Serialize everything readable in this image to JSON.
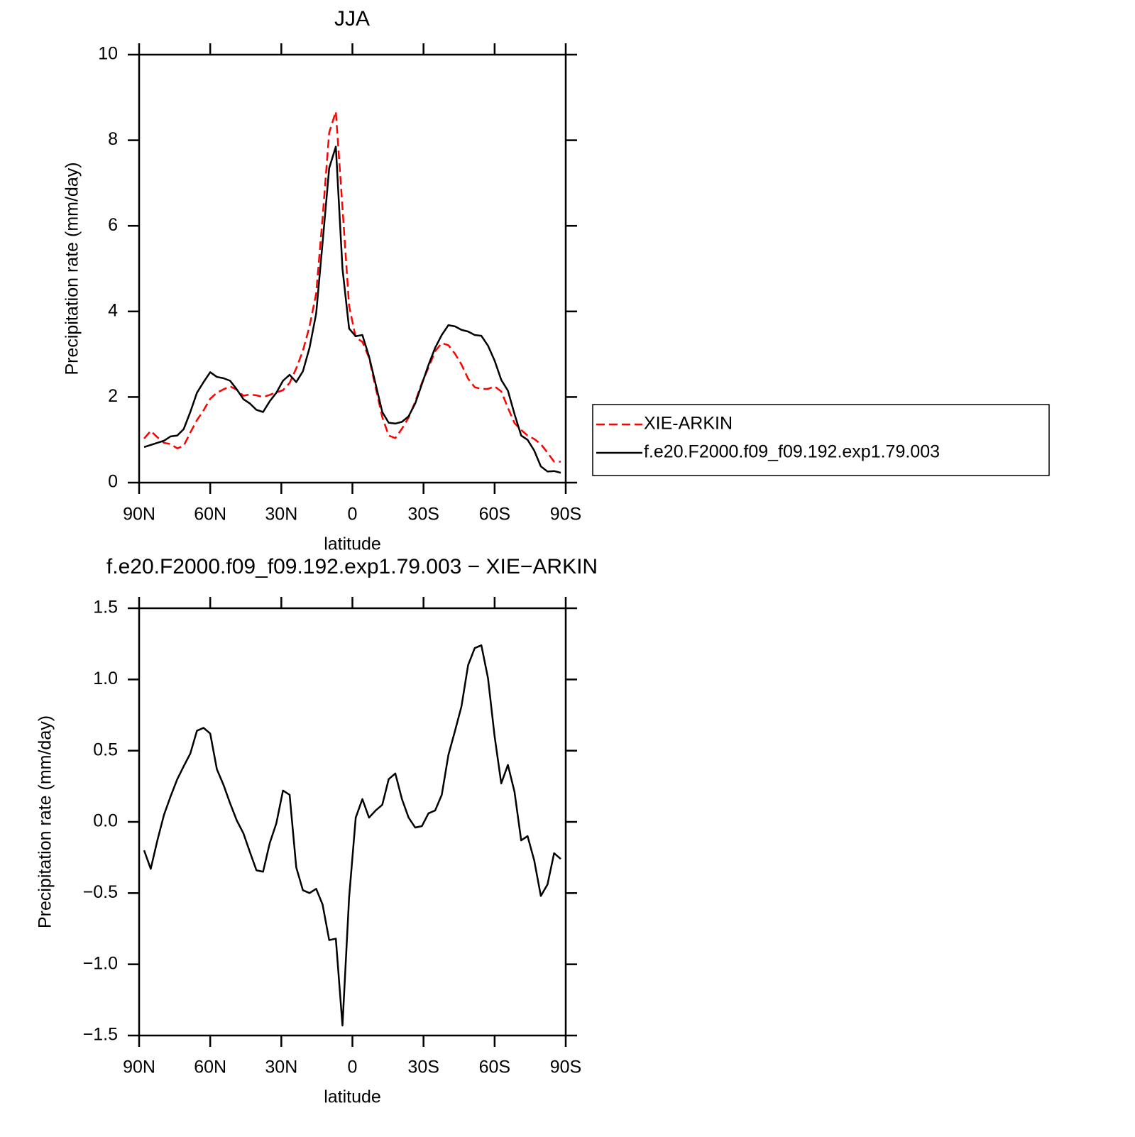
{
  "chart_data": [
    {
      "type": "line",
      "title": "JJA",
      "xlabel": "latitude",
      "ylabel": "Precipitation rate (mm/day)",
      "x": [
        87.9,
        85.1,
        82.3,
        79.5,
        76.7,
        73.9,
        71.2,
        68.4,
        65.6,
        62.8,
        60.0,
        57.2,
        54.4,
        51.6,
        48.8,
        46.0,
        43.3,
        40.5,
        37.7,
        34.9,
        32.1,
        29.3,
        26.5,
        23.7,
        20.9,
        18.1,
        15.3,
        12.6,
        9.8,
        7.0,
        4.2,
        1.4,
        -1.4,
        -4.2,
        -7.0,
        -9.8,
        -12.6,
        -15.3,
        -18.1,
        -20.9,
        -23.7,
        -26.5,
        -29.3,
        -32.1,
        -34.9,
        -37.7,
        -40.5,
        -43.3,
        -46.0,
        -48.8,
        -51.6,
        -54.4,
        -57.2,
        -60.0,
        -62.8,
        -65.6,
        -68.4,
        -71.2,
        -73.9,
        -76.7,
        -79.5,
        -82.3,
        -85.1,
        -87.9
      ],
      "series": [
        {
          "name": "XIE-ARKIN",
          "color": "#ff0000",
          "line_style": "dashed",
          "values": [
            1.03,
            1.21,
            1.06,
            0.93,
            0.9,
            0.8,
            0.86,
            1.17,
            1.46,
            1.69,
            1.96,
            2.1,
            2.18,
            2.25,
            2.17,
            2.03,
            2.06,
            2.04,
            2.0,
            2.05,
            2.11,
            2.16,
            2.33,
            2.67,
            3.08,
            3.65,
            4.42,
            6.18,
            8.18,
            8.67,
            6.43,
            4.13,
            3.39,
            3.29,
            2.92,
            2.22,
            1.53,
            1.1,
            1.04,
            1.26,
            1.52,
            1.89,
            2.33,
            2.69,
            3.07,
            3.26,
            3.21,
            3.01,
            2.76,
            2.43,
            2.23,
            2.19,
            2.19,
            2.25,
            2.13,
            1.75,
            1.39,
            1.23,
            1.1,
            1.02,
            0.9,
            0.7,
            0.49,
            0.49
          ]
        },
        {
          "name": "f.e20.F2000.f09_f09.192.exp1.79.003",
          "color": "#000000",
          "line_style": "solid",
          "values": [
            0.83,
            0.88,
            0.93,
            0.98,
            1.08,
            1.1,
            1.25,
            1.65,
            2.1,
            2.35,
            2.58,
            2.47,
            2.44,
            2.38,
            2.18,
            1.95,
            1.85,
            1.7,
            1.65,
            1.9,
            2.1,
            2.38,
            2.52,
            2.35,
            2.6,
            3.15,
            3.95,
            5.6,
            7.35,
            7.85,
            5.0,
            3.6,
            3.42,
            3.45,
            2.95,
            2.3,
            1.65,
            1.4,
            1.38,
            1.42,
            1.55,
            1.85,
            2.3,
            2.75,
            3.15,
            3.45,
            3.68,
            3.65,
            3.57,
            3.53,
            3.45,
            3.43,
            3.2,
            2.85,
            2.4,
            2.15,
            1.6,
            1.1,
            1.0,
            0.75,
            0.38,
            0.26,
            0.27,
            0.23
          ]
        }
      ],
      "xlim": [
        90,
        -90
      ],
      "xticks": [
        {
          "value": 90,
          "label": "90N"
        },
        {
          "value": 60,
          "label": "60N"
        },
        {
          "value": 30,
          "label": "30N"
        },
        0,
        {
          "value": -30,
          "label": "30S"
        },
        {
          "value": -60,
          "label": "60S"
        },
        {
          "value": -90,
          "label": "90S"
        }
      ],
      "ylim": [
        0,
        10
      ],
      "yticks": [
        0,
        2,
        4,
        6,
        8,
        10
      ],
      "legend": "right"
    },
    {
      "type": "line",
      "title": "f.e20.F2000.f09_f09.192.exp1.79.003 − XIE−ARKIN",
      "xlabel": "latitude",
      "ylabel": "Precipitation rate (mm/day)",
      "x": [
        87.9,
        85.1,
        82.3,
        79.5,
        76.7,
        73.9,
        71.2,
        68.4,
        65.6,
        62.8,
        60.0,
        57.2,
        54.4,
        51.6,
        48.8,
        46.0,
        43.3,
        40.5,
        37.7,
        34.9,
        32.1,
        29.3,
        26.5,
        23.7,
        20.9,
        18.1,
        15.3,
        12.6,
        9.8,
        7.0,
        4.2,
        1.4,
        -1.4,
        -4.2,
        -7.0,
        -9.8,
        -12.6,
        -15.3,
        -18.1,
        -20.9,
        -23.7,
        -26.5,
        -29.3,
        -32.1,
        -34.9,
        -37.7,
        -40.5,
        -43.3,
        -46.0,
        -48.8,
        -51.6,
        -54.4,
        -57.2,
        -60.0,
        -62.8,
        -65.6,
        -68.4,
        -71.2,
        -73.9,
        -76.7,
        -79.5,
        -82.3,
        -85.1,
        -87.9
      ],
      "series": [
        {
          "color": "#000000",
          "line_style": "solid",
          "values": [
            -0.2,
            -0.33,
            -0.13,
            0.05,
            0.18,
            0.3,
            0.39,
            0.48,
            0.64,
            0.66,
            0.62,
            0.37,
            0.26,
            0.13,
            0.01,
            -0.08,
            -0.21,
            -0.34,
            -0.35,
            -0.15,
            -0.01,
            0.22,
            0.19,
            -0.32,
            -0.48,
            -0.5,
            -0.47,
            -0.58,
            -0.83,
            -0.82,
            -1.43,
            -0.53,
            0.03,
            0.16,
            0.03,
            0.08,
            0.12,
            0.3,
            0.34,
            0.16,
            0.03,
            -0.04,
            -0.03,
            0.06,
            0.08,
            0.19,
            0.47,
            0.64,
            0.81,
            1.1,
            1.22,
            1.24,
            1.01,
            0.6,
            0.27,
            0.4,
            0.21,
            -0.13,
            -0.1,
            -0.27,
            -0.52,
            -0.44,
            -0.22,
            -0.26
          ]
        }
      ],
      "xlim": [
        90,
        -90
      ],
      "xticks": [
        {
          "value": 90,
          "label": "90N"
        },
        {
          "value": 60,
          "label": "60N"
        },
        {
          "value": 30,
          "label": "30N"
        },
        0,
        {
          "value": -30,
          "label": "30S"
        },
        {
          "value": -60,
          "label": "60S"
        },
        {
          "value": -90,
          "label": "90S"
        }
      ],
      "ylim": [
        -1.5,
        1.5
      ],
      "yticks": [
        {
          "value": -1.5,
          "label": "−1.5"
        },
        {
          "value": -1.0,
          "label": "−1.0"
        },
        {
          "value": -0.5,
          "label": "−0.5"
        },
        {
          "value": 0,
          "label": "0.0"
        },
        {
          "value": 0.5,
          "label": "0.5"
        },
        {
          "value": 1.0,
          "label": "1.0"
        },
        1.5
      ]
    }
  ]
}
